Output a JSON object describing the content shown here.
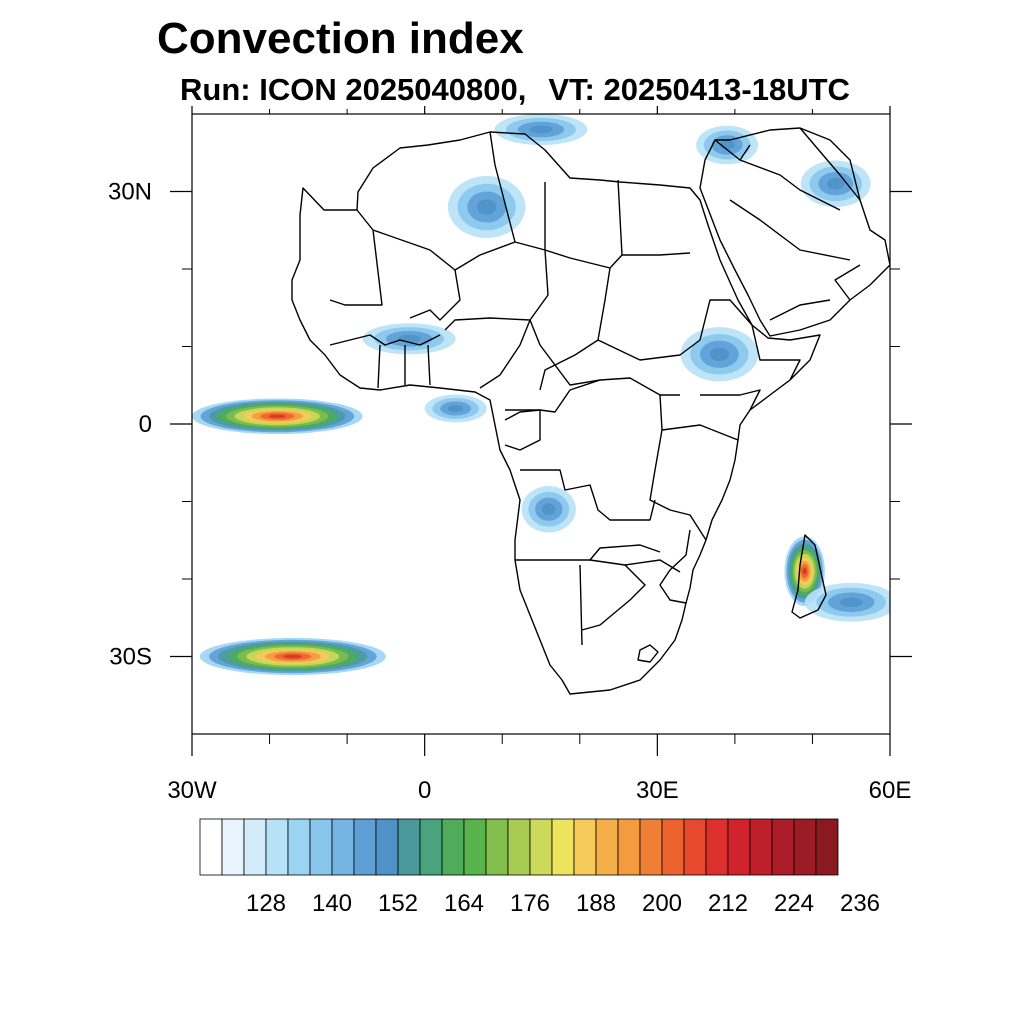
{
  "title": "Convection index",
  "subtitle": {
    "run_label": "Run:",
    "run_value": "ICON 2025040800,",
    "vt_label": "VT:",
    "vt_value": "20250413-18UTC"
  },
  "map": {
    "lon_range": [
      -30,
      60
    ],
    "lat_range": [
      -40,
      40
    ],
    "x_tick_labels": [
      {
        "lon": -30,
        "label": "30W"
      },
      {
        "lon": 0,
        "label": "0"
      },
      {
        "lon": 30,
        "label": "30E"
      },
      {
        "lon": 60,
        "label": "60E"
      }
    ],
    "y_tick_labels": [
      {
        "lat": 30,
        "label": "30N"
      },
      {
        "lat": 0,
        "label": "0"
      },
      {
        "lat": -30,
        "label": "30S"
      }
    ],
    "minor_lon_ticks": [
      -20,
      -10,
      10,
      20,
      40,
      50
    ],
    "minor_lat_ticks": [
      20,
      10,
      -10,
      -20
    ]
  },
  "colorbar": {
    "colors": [
      "#ffffff",
      "#e9f5fc",
      "#d2ecfa",
      "#b7e1f7",
      "#9bd4f3",
      "#88c6ec",
      "#74b5e4",
      "#5e9fd6",
      "#4f92c7",
      "#4a9a9c",
      "#4aa37c",
      "#4eac5b",
      "#56b44a",
      "#81be4c",
      "#a8cb52",
      "#cdd95a",
      "#ede35d",
      "#f6cb59",
      "#f5af49",
      "#f49a3f",
      "#f07f36",
      "#ec6330",
      "#e6492d",
      "#dd302c",
      "#d0232c",
      "#bf1f2b",
      "#ad1c29",
      "#9c1b24",
      "#8a1a20"
    ],
    "labels": [
      {
        "index": 3,
        "text": "128"
      },
      {
        "index": 6,
        "text": "140"
      },
      {
        "index": 9,
        "text": "152"
      },
      {
        "index": 12,
        "text": "164"
      },
      {
        "index": 15,
        "text": "176"
      },
      {
        "index": 18,
        "text": "188"
      },
      {
        "index": 21,
        "text": "200"
      },
      {
        "index": 24,
        "text": "212"
      },
      {
        "index": 27,
        "text": "224"
      },
      {
        "index": 30,
        "text": "236"
      }
    ]
  },
  "convection_regions": [
    {
      "name": "gulf-of-guinea-cluster",
      "lon": -19,
      "lat": 1,
      "rx_deg": 11,
      "ry_deg": 2.3,
      "peak": "high"
    },
    {
      "name": "south-atlantic-cluster",
      "lon": -17,
      "lat": -30,
      "rx_deg": 12,
      "ry_deg": 2.4,
      "peak": "high"
    },
    {
      "name": "madagascar-cluster",
      "lon": 49,
      "lat": -19,
      "rx_deg": 2.6,
      "ry_deg": 4.5,
      "peak": "high"
    },
    {
      "name": "sahara-band",
      "lon": 8,
      "lat": 28,
      "rx_deg": 5,
      "ry_deg": 4,
      "peak": "low"
    },
    {
      "name": "mediterranean-north",
      "lon": 15,
      "lat": 38,
      "rx_deg": 6,
      "ry_deg": 2,
      "peak": "low"
    },
    {
      "name": "middle-east",
      "lon": 39,
      "lat": 36,
      "rx_deg": 4,
      "ry_deg": 2.5,
      "peak": "low"
    },
    {
      "name": "persian-gulf",
      "lon": 53,
      "lat": 31,
      "rx_deg": 4.5,
      "ry_deg": 3,
      "peak": "low"
    },
    {
      "name": "ethiopian-highlands",
      "lon": 38,
      "lat": 9,
      "rx_deg": 5,
      "ry_deg": 3.5,
      "peak": "low"
    },
    {
      "name": "west-africa",
      "lon": -2,
      "lat": 11,
      "rx_deg": 6,
      "ry_deg": 2,
      "peak": "low"
    },
    {
      "name": "central-africa",
      "lon": 4,
      "lat": 2,
      "rx_deg": 4,
      "ry_deg": 1.8,
      "peak": "low"
    },
    {
      "name": "angola",
      "lon": 16,
      "lat": -11,
      "rx_deg": 3.5,
      "ry_deg": 3,
      "peak": "low"
    },
    {
      "name": "indian-ocean",
      "lon": 55,
      "lat": -23,
      "rx_deg": 6,
      "ry_deg": 2.5,
      "peak": "low"
    }
  ]
}
